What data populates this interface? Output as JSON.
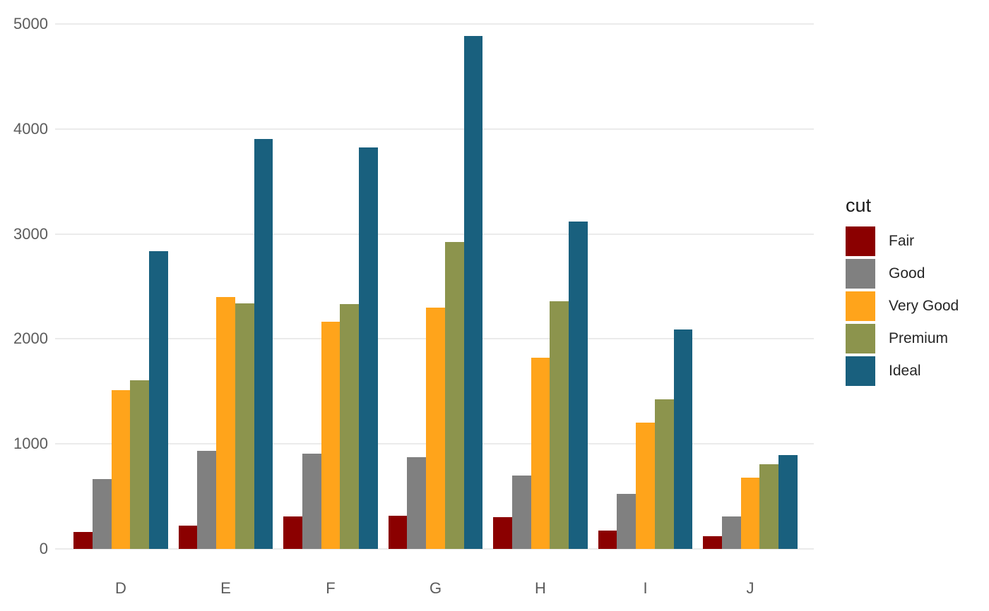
{
  "chart_data": {
    "type": "bar",
    "title": "",
    "xlabel": "",
    "ylabel": "",
    "legend_title": "cut",
    "legend_position": "right",
    "grid": "horizontal-major-only",
    "background_color": "#FFFFFF",
    "gridline_color": "#EBEBEB",
    "axis_text_color": "#5C5C5C",
    "legend_text_color": "#262626",
    "categories": [
      "D",
      "E",
      "F",
      "G",
      "H",
      "I",
      "J"
    ],
    "yticks": [
      0,
      1000,
      2000,
      3000,
      4000,
      5000
    ],
    "ylim": [
      0,
      5000
    ],
    "series": [
      {
        "name": "Fair",
        "color": "#8B0000",
        "values": [
          163,
          224,
          312,
          314,
          303,
          175,
          119
        ]
      },
      {
        "name": "Good",
        "color": "#808080",
        "values": [
          662,
          933,
          909,
          871,
          702,
          522,
          307
        ]
      },
      {
        "name": "Very Good",
        "color": "#FFA41B",
        "values": [
          1513,
          2400,
          2164,
          2299,
          1824,
          1204,
          678
        ]
      },
      {
        "name": "Premium",
        "color": "#8C944D",
        "values": [
          1603,
          2337,
          2331,
          2924,
          2360,
          1428,
          808
        ]
      },
      {
        "name": "Ideal",
        "color": "#19607E",
        "values": [
          2834,
          3903,
          3826,
          4884,
          3115,
          2093,
          896
        ]
      }
    ]
  }
}
